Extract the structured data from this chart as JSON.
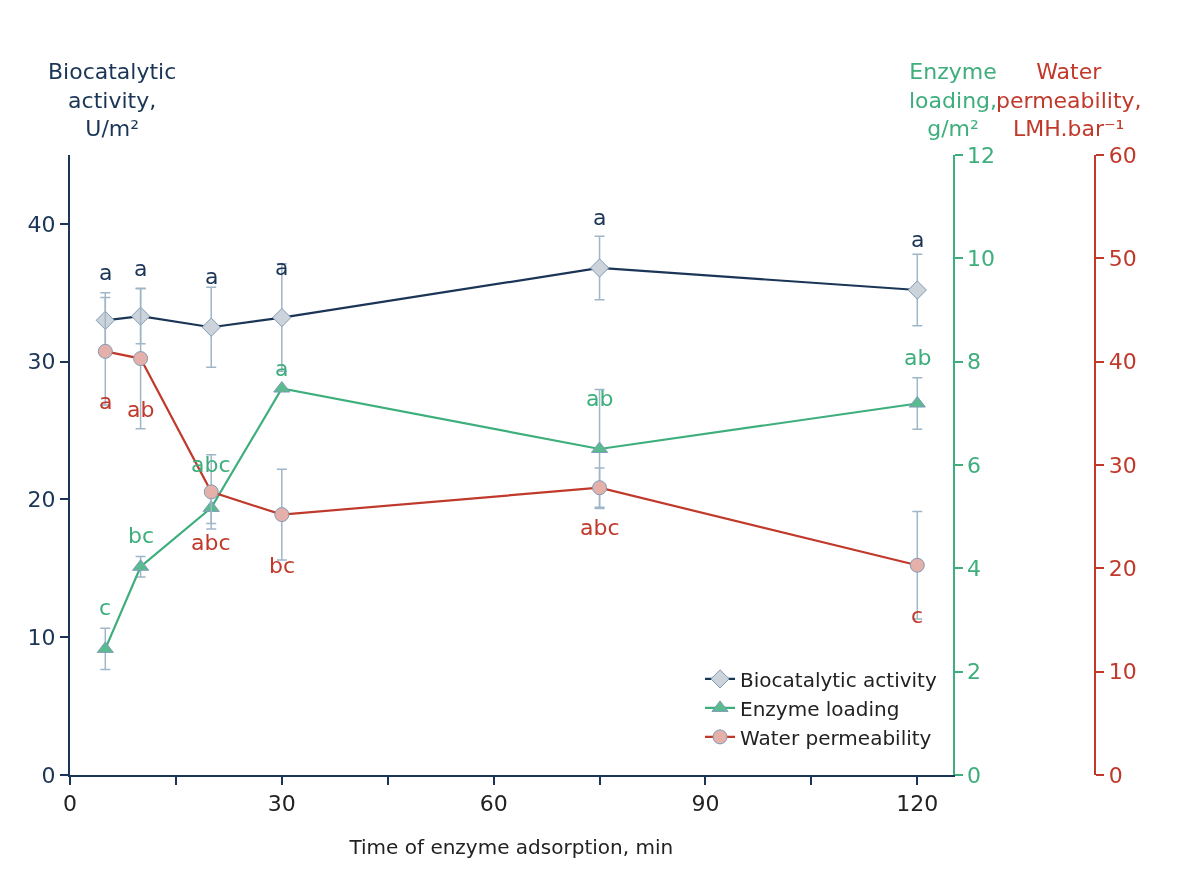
{
  "chart_data": {
    "type": "line",
    "xlabel": "Time of enzyme adsorption, min",
    "ylabel": "Biocatalytic activity, U/m²",
    "y2label": "Enzyme loading, g/m²",
    "y3label": "Water permeability, LMH.bar⁻¹",
    "x": [
      5,
      10,
      20,
      30,
      75,
      120
    ],
    "xlim": [
      0,
      125
    ],
    "xticks": [
      0,
      {
        "value": 15,
        "label": null
      },
      30,
      {
        "value": 45,
        "label": null
      },
      60,
      {
        "value": 75,
        "label": null
      },
      90,
      {
        "value": 105,
        "label": null
      },
      120
    ],
    "ylim": [
      0,
      45
    ],
    "yticks": [
      0,
      10,
      20,
      30,
      40
    ],
    "y2lim": [
      0,
      12
    ],
    "y2ticks": [
      0,
      2,
      4,
      6,
      8,
      10,
      12
    ],
    "y3lim": [
      0,
      60
    ],
    "y3ticks": [
      0,
      10,
      20,
      30,
      40,
      50,
      60
    ],
    "grid": false,
    "legend": "bottom right",
    "line_style": "solid",
    "series": [
      {
        "name": "Biocatalytic activity",
        "color": "#1b3556",
        "marker": "diamond",
        "values": [
          33.0,
          33.3,
          32.5,
          33.2,
          36.8,
          35.2
        ],
        "errors": [
          2.0,
          2.0,
          2.9,
          3.9,
          2.3,
          2.6
        ],
        "value_labels": [
          "a",
          "a",
          "a",
          "a",
          "a",
          "a"
        ]
      },
      {
        "name": "Enzyme loading",
        "color": "#3dae7c",
        "marker": "triangle",
        "axis": "y2",
        "values": [
          2.44,
          4.03,
          5.17,
          7.48,
          6.31,
          7.19
        ],
        "errors": [
          0.4,
          0.2,
          0.3,
          null,
          1.15,
          0.5
        ],
        "value_labels": [
          "c",
          "bc",
          "abc",
          "a",
          "ab",
          "ab"
        ]
      },
      {
        "name": "Water permeability",
        "color": "#c0392b",
        "marker": "circle",
        "axis": "y3",
        "values": [
          41.0,
          40.3,
          27.4,
          25.2,
          27.8,
          20.3
        ],
        "errors": [
          5.2,
          6.8,
          3.6,
          4.4,
          1.9,
          5.2
        ],
        "value_labels": [
          "a",
          "ab",
          "abc",
          "bc",
          "abc",
          "c"
        ]
      }
    ]
  }
}
